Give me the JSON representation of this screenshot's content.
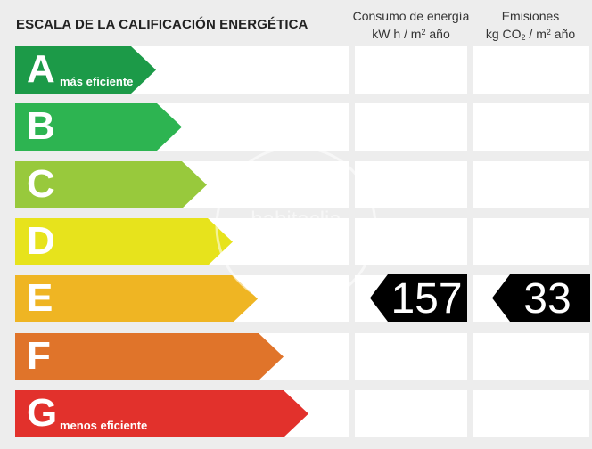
{
  "title": "ESCALA DE LA CALIFICACIÓN ENERGÉTICA",
  "columns": {
    "consumo": {
      "line1": "Consumo de energía",
      "line2_prefix": "kW h  / m",
      "line2_exp": "2",
      "line2_suffix": " año"
    },
    "emisiones": {
      "line1": "Emisiones",
      "line2_prefix": "kg CO",
      "line2_sub": "2",
      "line2_mid": "  / m",
      "line2_exp": "2",
      "line2_suffix": " año"
    }
  },
  "ratings": [
    {
      "letter": "A",
      "sublabel": "más eficiente",
      "color": "#1c9a48"
    },
    {
      "letter": "B",
      "sublabel": "",
      "color": "#2db451"
    },
    {
      "letter": "C",
      "sublabel": "",
      "color": "#98c93c"
    },
    {
      "letter": "D",
      "sublabel": "",
      "color": "#e7e31c"
    },
    {
      "letter": "E",
      "sublabel": "",
      "color": "#efb523"
    },
    {
      "letter": "F",
      "sublabel": "",
      "color": "#e0742a"
    },
    {
      "letter": "G",
      "sublabel": "menos eficiente",
      "color": "#e2312c"
    }
  ],
  "selected_rating": "E",
  "consumo_value": "157",
  "emisiones_value": "33",
  "watermark_text": "habitaclia"
}
